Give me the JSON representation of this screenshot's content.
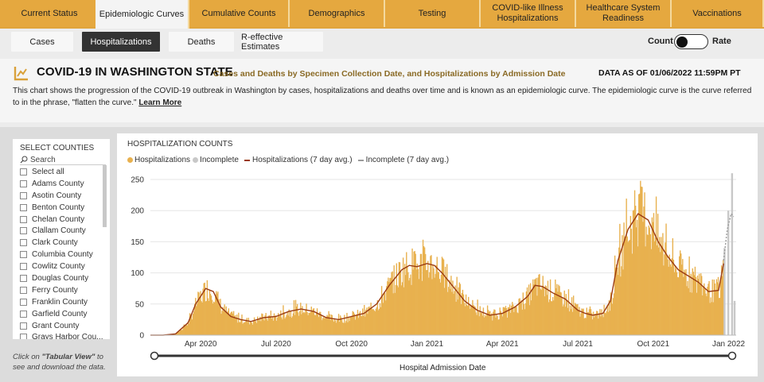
{
  "nav": {
    "tabs": [
      {
        "label": "Current Status",
        "active": false
      },
      {
        "label": "Epidemiologic Curves",
        "active": true
      },
      {
        "label": "Cumulative Counts",
        "active": false
      },
      {
        "label": "Demographics",
        "active": false
      },
      {
        "label": "Testing",
        "active": false
      },
      {
        "label": "COVID-like Illness Hospitalizations",
        "active": false
      },
      {
        "label": "Healthcare System Readiness",
        "active": false
      },
      {
        "label": "Vaccinations",
        "active": false
      }
    ]
  },
  "subnav": {
    "pills": [
      {
        "label": "Cases",
        "active": false
      },
      {
        "label": "Hospitalizations",
        "active": true
      },
      {
        "label": "Deaths",
        "active": false
      },
      {
        "label": "R-effective Estimates",
        "active": false
      }
    ],
    "toggle": {
      "left_label": "Count",
      "right_label": "Rate",
      "value": "Count"
    }
  },
  "header": {
    "title": "COVID-19 IN WASHINGTON STATE",
    "subtitle": "Cases and Deaths by Specimen Collection Date, and Hospitalizations by Admission Date",
    "as_of": "DATA AS OF 01/06/2022 11:59PM PT",
    "description": "This chart shows the progression of the COVID-19 outbreak in Washington by cases, hospitalizations and deaths over time and is known as an epidemiologic curve. The epidemiologic curve is the curve referred to in the phrase, \"flatten the curve.\"",
    "learn_more": "Learn More"
  },
  "sidebar": {
    "title": "SELECT COUNTIES",
    "search_placeholder": "Search",
    "counties": [
      "Select all",
      "Adams County",
      "Asotin County",
      "Benton County",
      "Chelan County",
      "Clallam County",
      "Clark County",
      "Columbia County",
      "Cowlitz County",
      "Douglas County",
      "Ferry County",
      "Franklin County",
      "Garfield County",
      "Grant County",
      "Grays Harbor Cou..."
    ],
    "tabular_prefix": "Click on ",
    "tabular_link": "\"Tabular View\"",
    "tabular_suffix": " to see and download the data."
  },
  "colors": {
    "accent": "#e5a83f",
    "hosp_bar": "#e8b14f",
    "incomplete_bar": "#c8c8c8",
    "avg_line": "#9a3a12",
    "incomplete_line": "#9a9a9a"
  },
  "chart_data": {
    "type": "bar",
    "title": "HOSPITALIZATION COUNTS",
    "xlabel": "Hospital Admission Date",
    "ylabel": "",
    "ylim": [
      0,
      250
    ],
    "yticks": [
      0,
      50,
      100,
      150,
      200,
      250
    ],
    "xticks": [
      {
        "label": "Apr 2020",
        "month": 2
      },
      {
        "label": "Jul 2020",
        "month": 5
      },
      {
        "label": "Oct 2020",
        "month": 8
      },
      {
        "label": "Jan 2021",
        "month": 11
      },
      {
        "label": "Apr 2021",
        "month": 14
      },
      {
        "label": "Jul 2021",
        "month": 17
      },
      {
        "label": "Oct 2021",
        "month": 20
      },
      {
        "label": "Jan 2022",
        "month": 23
      }
    ],
    "x_range_months": [
      0,
      23.3
    ],
    "legend": [
      "Hospitalizations",
      "Incomplete",
      "Hospitalizations (7 day avg.)",
      "Incomplete (7 day avg.)"
    ],
    "hospitalizations_7day_avg": {
      "month_offset": [
        0,
        0.5,
        1.0,
        1.5,
        1.8,
        2.2,
        2.5,
        2.8,
        3.2,
        3.6,
        4.0,
        4.5,
        5.0,
        5.5,
        6.0,
        6.5,
        7.0,
        7.5,
        8.0,
        8.5,
        9.0,
        9.5,
        10.0,
        10.3,
        10.6,
        11.0,
        11.3,
        11.6,
        12.0,
        12.5,
        13.0,
        13.5,
        14.0,
        14.5,
        15.0,
        15.3,
        15.6,
        16.0,
        16.5,
        17.0,
        17.3,
        17.6,
        18.0,
        18.3,
        18.6,
        19.0,
        19.4,
        19.8,
        20.2,
        20.6,
        21.0,
        21.4,
        21.8,
        22.2,
        22.6,
        22.8
      ],
      "values": [
        0,
        0,
        2,
        20,
        50,
        75,
        70,
        45,
        30,
        25,
        22,
        28,
        30,
        38,
        42,
        38,
        28,
        25,
        30,
        35,
        50,
        80,
        105,
        112,
        110,
        115,
        112,
        100,
        80,
        55,
        40,
        32,
        35,
        45,
        62,
        80,
        78,
        68,
        58,
        40,
        35,
        32,
        35,
        55,
        120,
        170,
        195,
        185,
        150,
        125,
        105,
        95,
        85,
        70,
        72,
        115
      ]
    },
    "incomplete_tail": {
      "month_offset": [
        22.8,
        22.95,
        23.1,
        23.2
      ],
      "bar_values": [
        140,
        200,
        260,
        55
      ],
      "avg_values": [
        120,
        170,
        195,
        190
      ]
    }
  }
}
